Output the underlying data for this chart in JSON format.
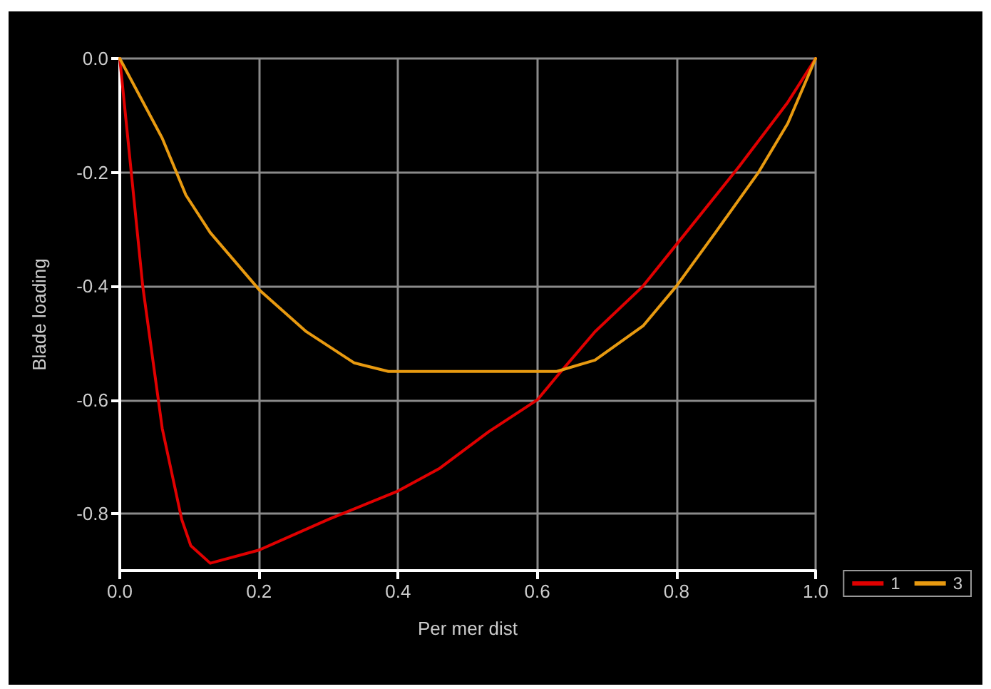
{
  "chart_data": {
    "type": "line",
    "xlabel": "Per mer dist",
    "ylabel": "Blade loading",
    "xlim": [
      0,
      1
    ],
    "xticks": [
      {
        "value": 0,
        "label": "0.0"
      },
      0.2,
      0.4,
      0.6,
      0.8,
      {
        "value": 1,
        "label": "1.0"
      }
    ],
    "ylim": [
      -0.9,
      0
    ],
    "yticks": [
      {
        "value": 0,
        "label": "0.0"
      },
      -0.2,
      -0.4,
      -0.6,
      -0.8
    ],
    "grid": true,
    "legend": "bottom right",
    "marker": "none",
    "line_style": "solid",
    "series": [
      {
        "name": "1",
        "color": "#e00000",
        "x": [
          0,
          0.033,
          0.061,
          0.089,
          0.102,
          0.13,
          0.2,
          0.3,
          0.4,
          0.46,
          0.53,
          0.6,
          0.63,
          0.683,
          0.752,
          0.8,
          0.89,
          0.96,
          1
        ],
        "values": [
          0,
          -0.4,
          -0.65,
          -0.81,
          -0.856,
          -0.887,
          -0.864,
          -0.81,
          -0.76,
          -0.72,
          -0.656,
          -0.6,
          -0.556,
          -0.48,
          -0.4,
          -0.327,
          -0.19,
          -0.077,
          0
        ]
      },
      {
        "name": "3",
        "color": "#e89a10",
        "x": [
          0,
          0.061,
          0.095,
          0.13,
          0.2,
          0.268,
          0.337,
          0.386,
          0.628,
          0.683,
          0.752,
          0.8,
          0.856,
          0.918,
          0.96,
          1
        ],
        "values": [
          0,
          -0.14,
          -0.24,
          -0.306,
          -0.406,
          -0.48,
          -0.535,
          -0.55,
          -0.55,
          -0.53,
          -0.47,
          -0.4,
          -0.306,
          -0.2,
          -0.114,
          0
        ]
      }
    ]
  }
}
